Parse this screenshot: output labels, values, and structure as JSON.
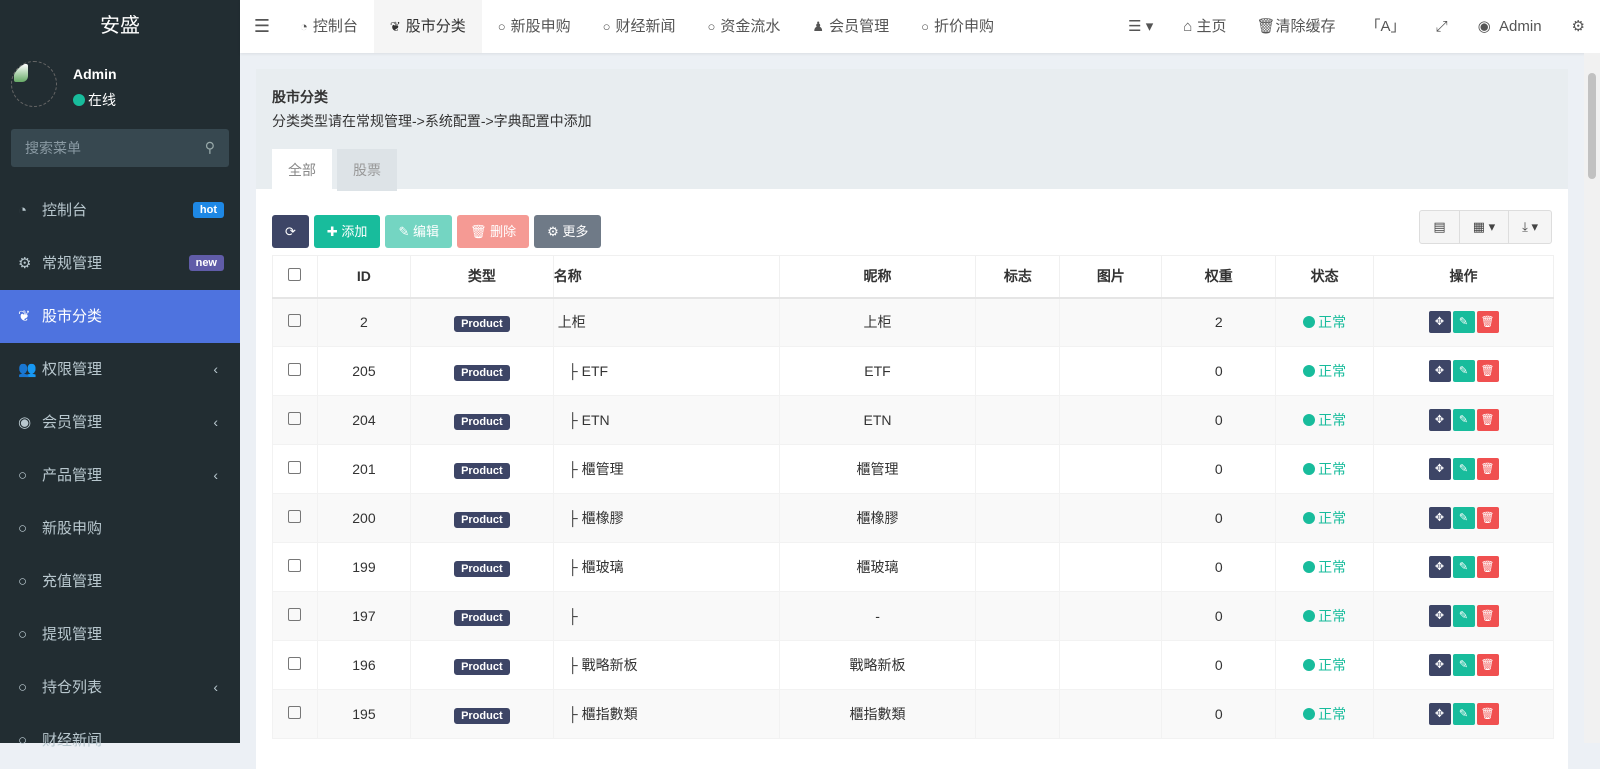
{
  "sidebar": {
    "logo": "安盛",
    "user": {
      "name": "Admin",
      "status": "在线"
    },
    "search_placeholder": "搜索菜单",
    "items": [
      {
        "label": "控制台",
        "icon": "dashboard-icon",
        "badge": "hot",
        "badge_color": "#1e88e5"
      },
      {
        "label": "常规管理",
        "icon": "cogs-icon",
        "badge": "new",
        "badge_color": "#605ca8"
      },
      {
        "label": "股市分类",
        "icon": "leaf-icon",
        "active": true
      },
      {
        "label": "权限管理",
        "icon": "users-icon",
        "submenu": true
      },
      {
        "label": "会员管理",
        "icon": "user-circle-icon",
        "submenu": true
      },
      {
        "label": "产品管理",
        "icon": "circle-icon",
        "submenu": true
      },
      {
        "label": "新股申购",
        "icon": "circle-icon"
      },
      {
        "label": "充值管理",
        "icon": "circle-icon"
      },
      {
        "label": "提现管理",
        "icon": "circle-icon"
      },
      {
        "label": "持仓列表",
        "icon": "circle-icon",
        "submenu": true
      },
      {
        "label": "财经新闻",
        "icon": "circle-icon"
      }
    ]
  },
  "header": {
    "tabs": [
      {
        "label": "控制台",
        "icon": "dashboard-icon"
      },
      {
        "label": "股市分类",
        "icon": "leaf-icon",
        "active": true
      },
      {
        "label": "新股申购",
        "icon": "circle-icon"
      },
      {
        "label": "财经新闻",
        "icon": "circle-icon"
      },
      {
        "label": "资金流水",
        "icon": "circle-icon"
      },
      {
        "label": "会员管理",
        "icon": "user-icon"
      },
      {
        "label": "折价申购",
        "icon": "circle-icon"
      }
    ],
    "home": "主页",
    "clear_cache": "清除缓存",
    "user": "Admin"
  },
  "panel": {
    "title": "股市分类",
    "description": "分类类型请在常规管理->系统配置->字典配置中添加",
    "tabs": [
      "全部",
      "股票"
    ],
    "toolbar": {
      "add": "添加",
      "edit": "编辑",
      "delete": "删除",
      "more": "更多"
    }
  },
  "table": {
    "columns": [
      "ID",
      "类型",
      "名称",
      "昵称",
      "标志",
      "图片",
      "权重",
      "状态",
      "操作"
    ],
    "rows": [
      {
        "id": "2",
        "type": "Product",
        "name": "上柜",
        "nickname": "上柜",
        "flag": "",
        "image": "",
        "weight": "2",
        "status": "正常"
      },
      {
        "id": "205",
        "type": "Product",
        "name": "├ ETF",
        "nickname": "ETF",
        "flag": "",
        "image": "",
        "weight": "0",
        "status": "正常"
      },
      {
        "id": "204",
        "type": "Product",
        "name": "├ ETN",
        "nickname": "ETN",
        "flag": "",
        "image": "",
        "weight": "0",
        "status": "正常"
      },
      {
        "id": "201",
        "type": "Product",
        "name": "├ 櫃管理",
        "nickname": "櫃管理",
        "flag": "",
        "image": "",
        "weight": "0",
        "status": "正常"
      },
      {
        "id": "200",
        "type": "Product",
        "name": "├ 櫃橡膠",
        "nickname": "櫃橡膠",
        "flag": "",
        "image": "",
        "weight": "0",
        "status": "正常"
      },
      {
        "id": "199",
        "type": "Product",
        "name": "├ 櫃玻璃",
        "nickname": "櫃玻璃",
        "flag": "",
        "image": "",
        "weight": "0",
        "status": "正常"
      },
      {
        "id": "197",
        "type": "Product",
        "name": "├",
        "nickname": "-",
        "flag": "",
        "image": "",
        "weight": "0",
        "status": "正常"
      },
      {
        "id": "196",
        "type": "Product",
        "name": "├ 戰略新板",
        "nickname": "戰略新板",
        "flag": "",
        "image": "",
        "weight": "0",
        "status": "正常"
      },
      {
        "id": "195",
        "type": "Product",
        "name": "├ 櫃指數類",
        "nickname": "櫃指數類",
        "flag": "",
        "image": "",
        "weight": "0",
        "status": "正常"
      }
    ]
  },
  "colors": {
    "sidebar": "#222d32",
    "active": "#4e73df",
    "success": "#18bc9c",
    "danger": "#f05050",
    "primary": "#3d4566"
  }
}
